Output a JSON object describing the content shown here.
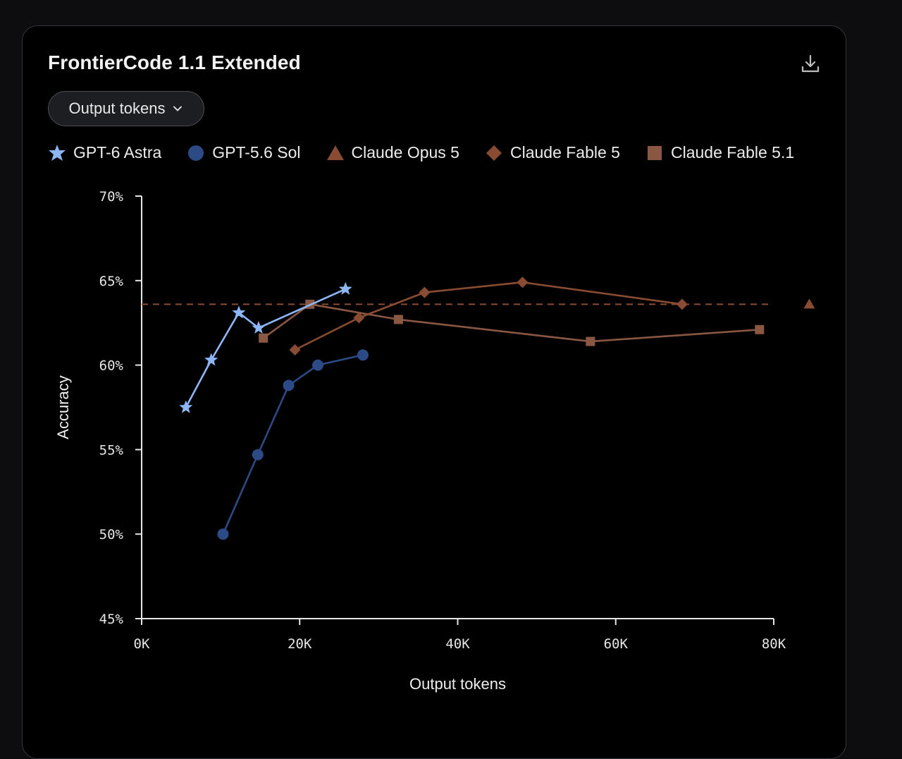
{
  "card": {
    "title": "FrontierCode 1.1 Extended",
    "dropdown_label": "Output tokens",
    "download_icon": "download-icon"
  },
  "chart_data": {
    "type": "scatter",
    "title": "",
    "xlabel": "Output tokens",
    "ylabel": "Accuracy",
    "xlim": [
      0,
      80000
    ],
    "ylim": [
      45,
      70
    ],
    "xticks": [
      0,
      20000,
      40000,
      60000,
      80000
    ],
    "xtick_labels": [
      "0K",
      "20K",
      "40K",
      "60K",
      "80K"
    ],
    "yticks": [
      45,
      50,
      55,
      60,
      65,
      70
    ],
    "ytick_labels": [
      "45%",
      "50%",
      "55%",
      "60%",
      "65%",
      "70%"
    ],
    "grid": false,
    "legend_position": "top",
    "series": [
      {
        "name": "GPT-6 Astra",
        "marker": "star",
        "color": "#8db6f7",
        "connected": true,
        "points": [
          [
            5600,
            57.5
          ],
          [
            8800,
            60.3
          ],
          [
            12300,
            63.1
          ],
          [
            14800,
            62.2
          ],
          [
            25800,
            64.5
          ]
        ]
      },
      {
        "name": "GPT-5.6 Sol",
        "marker": "circle",
        "color": "#2c4a85",
        "connected": true,
        "points": [
          [
            10300,
            50.0
          ],
          [
            14700,
            54.7
          ],
          [
            18600,
            58.8
          ],
          [
            22300,
            60.0
          ],
          [
            28000,
            60.6
          ]
        ]
      },
      {
        "name": "Claude Opus 5",
        "marker": "triangle",
        "color": "#8a4b33",
        "connected": false,
        "reference_line": 63.6,
        "points": [
          [
            84500,
            63.6
          ]
        ]
      },
      {
        "name": "Claude Fable 5",
        "marker": "diamond",
        "color": "#8a4b33",
        "connected": true,
        "points": [
          [
            19400,
            60.9
          ],
          [
            27500,
            62.8
          ],
          [
            35800,
            64.3
          ],
          [
            48200,
            64.9
          ],
          [
            68400,
            63.6
          ]
        ]
      },
      {
        "name": "Claude Fable 5.1",
        "marker": "square",
        "color": "#8a5842",
        "connected": true,
        "points": [
          [
            15400,
            61.6
          ],
          [
            21300,
            63.6
          ],
          [
            32500,
            62.7
          ],
          [
            56800,
            61.4
          ],
          [
            78200,
            62.1
          ]
        ]
      }
    ]
  }
}
